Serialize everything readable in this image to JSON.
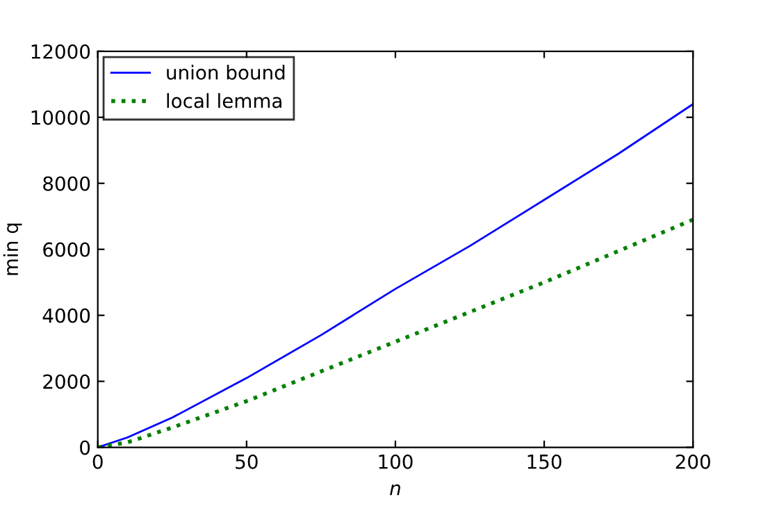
{
  "chart_data": {
    "type": "line",
    "xlabel": "n",
    "ylabel": "min q",
    "xlim": [
      0,
      200
    ],
    "xticks": [
      0,
      50,
      100,
      150,
      200
    ],
    "ylim": [
      0,
      12000
    ],
    "yticks": [
      0,
      2000,
      4000,
      6000,
      8000,
      10000,
      12000
    ],
    "x": [
      0,
      10,
      25,
      50,
      75,
      100,
      125,
      150,
      175,
      200
    ],
    "series": [
      {
        "name": "union bound",
        "color": "#0000ff",
        "line_style": "solid",
        "values": [
          0,
          300,
          900,
          2100,
          3400,
          4800,
          6100,
          7500,
          8900,
          10400
        ]
      },
      {
        "name": "local lemma",
        "color": "#008000",
        "line_style": "dotted",
        "values": [
          0,
          150,
          600,
          1400,
          2300,
          3200,
          4100,
          5000,
          5950,
          6900
        ]
      }
    ],
    "grid": false,
    "legend": "top left"
  }
}
